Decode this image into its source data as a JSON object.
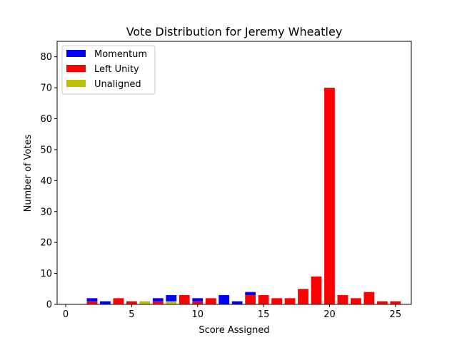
{
  "chart_data": {
    "type": "bar",
    "stacked": true,
    "title": "Vote Distribution for Jeremy Wheatley",
    "xlabel": "Score Assigned",
    "ylabel": "Number of Votes",
    "xlim": [
      -0.65,
      26.2
    ],
    "ylim": [
      0,
      85
    ],
    "xticks": [
      0,
      5,
      10,
      15,
      20,
      25
    ],
    "yticks": [
      0,
      10,
      20,
      30,
      40,
      50,
      60,
      70,
      80
    ],
    "legend": "top-left",
    "grid": false,
    "x": [
      2,
      3,
      4,
      5,
      6,
      7,
      8,
      9,
      10,
      11,
      12,
      13,
      14,
      15,
      16,
      17,
      18,
      19,
      20,
      21,
      22,
      23,
      24,
      25
    ],
    "series": [
      {
        "name": "Unaligned",
        "color": "#bfbf00",
        "values": [
          0,
          0,
          0,
          0,
          1,
          0,
          1,
          0,
          0,
          0,
          0,
          0,
          0,
          0,
          0,
          0,
          0,
          0,
          0,
          0,
          0,
          0,
          0,
          0
        ]
      },
      {
        "name": "Left Unity",
        "color": "#ff0000",
        "values": [
          1,
          0,
          2,
          1,
          0,
          1,
          0,
          3,
          1,
          2,
          0,
          0,
          3,
          3,
          2,
          2,
          5,
          9,
          70,
          3,
          2,
          4,
          1,
          1
        ]
      },
      {
        "name": "Momentum",
        "color": "#0000ff",
        "values": [
          1,
          1,
          0,
          0,
          0,
          1,
          2,
          0,
          1,
          0,
          3,
          1,
          1,
          0,
          0,
          0,
          0,
          0,
          0,
          0,
          0,
          0,
          0,
          0
        ]
      }
    ],
    "legend_order": [
      "Momentum",
      "Left Unity",
      "Unaligned"
    ]
  }
}
